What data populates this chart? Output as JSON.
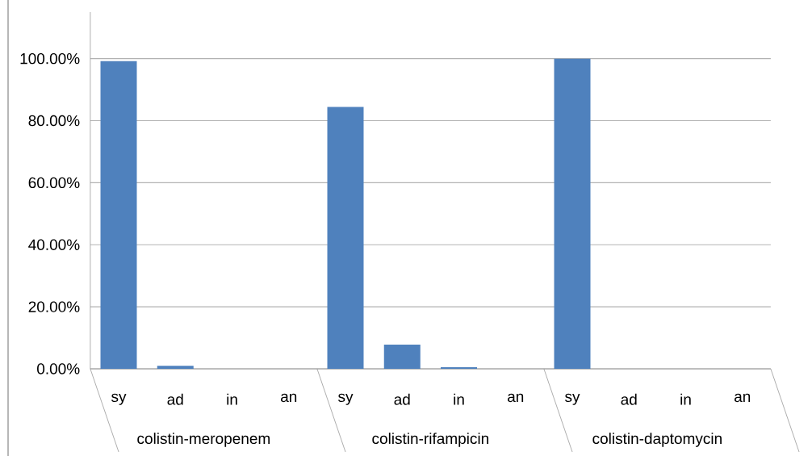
{
  "chart_data": {
    "type": "bar",
    "categories": [
      "sy",
      "ad",
      "in",
      "an",
      "sy",
      "ad",
      "in",
      "an",
      "sy",
      "ad",
      "in",
      "an"
    ],
    "values": [
      99.2,
      1.0,
      0,
      0,
      84.4,
      7.8,
      0.5,
      0,
      100,
      0,
      0,
      0
    ],
    "color": "#4f81bd",
    "ylim": [
      0,
      115
    ],
    "yticks": [
      {
        "value": 0,
        "label": "0.00%"
      },
      {
        "value": 20,
        "label": "20.00%"
      },
      {
        "value": 40,
        "label": "40.00%"
      },
      {
        "value": 60,
        "label": "60.00%"
      },
      {
        "value": 80,
        "label": "80.00%"
      },
      {
        "value": 100,
        "label": "100.00%"
      }
    ],
    "grid": "y",
    "annotations": [
      "colistin-meropenem",
      "colistin-rifampicin",
      "colistin-daptomycin"
    ]
  }
}
